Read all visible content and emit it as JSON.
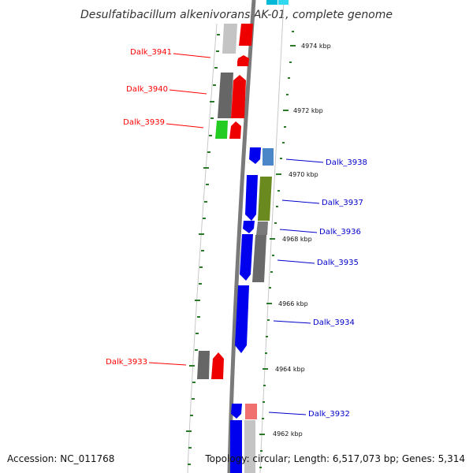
{
  "title": "Desulfatibacillum alkenivorans AK-01, complete genome",
  "footer": {
    "accession": "Accession: NC_011768",
    "topology": "Topology: circular; Length: 6,517,073 bp; Genes: 5,314"
  },
  "colors": {
    "forward_label": "#ff0000",
    "reverse_label": "#0000cc",
    "backbone": "#808080",
    "tick": "#2a7a2a",
    "outline": "#c8c8c8"
  },
  "scale_labels": [
    "4974 kbp",
    "4972 kbp",
    "4970 kbp",
    "4968 kbp",
    "4966 kbp",
    "4964 kbp",
    "4962 kbp"
  ],
  "genes": [
    {
      "label": "Dalk_3941",
      "strand": "+"
    },
    {
      "label": "Dalk_3940",
      "strand": "+"
    },
    {
      "label": "Dalk_3939",
      "strand": "+"
    },
    {
      "label": "Dalk_3938",
      "strand": "-"
    },
    {
      "label": "Dalk_3937",
      "strand": "-"
    },
    {
      "label": "Dalk_3936",
      "strand": "-"
    },
    {
      "label": "Dalk_3935",
      "strand": "-"
    },
    {
      "label": "Dalk_3934",
      "strand": "-"
    },
    {
      "label": "Dalk_3933",
      "strand": "+"
    },
    {
      "label": "Dalk_3932",
      "strand": "-"
    }
  ]
}
